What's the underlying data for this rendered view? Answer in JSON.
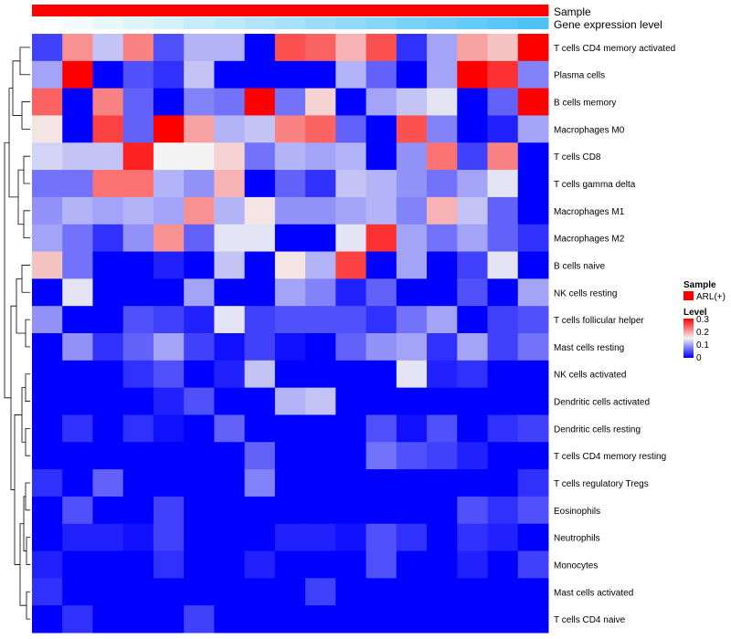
{
  "chart_data": {
    "type": "heatmap",
    "title": "",
    "annotation_rows": [
      {
        "name": "Sample",
        "color_start": "#ff0000",
        "color_end": "#ff0000"
      },
      {
        "name": "Gene expression level",
        "color_start": "#ffffff",
        "color_end": "#4fc3f7"
      }
    ],
    "rows": [
      "T cells CD4 memory activated",
      "Plasma cells",
      "B cells memory",
      "Macrophages M0",
      "T cells CD8",
      "T cells gamma delta",
      "Macrophages M1",
      "Macrophages M2",
      "B cells naive",
      "NK cells resting",
      "T cells follicular helper",
      "Mast cells resting",
      "NK cells activated",
      "Dendritic cells activated",
      "Dendritic cells resting",
      "T cells CD4 memory resting",
      "T cells regulatory  Tregs",
      "Eosinophils",
      "Neutrophils",
      "Monocytes",
      "Mast cells activated",
      "T cells CD4 naive"
    ],
    "n_columns": 17,
    "values": [
      [
        0.04,
        0.21,
        0.12,
        0.22,
        0.05,
        0.11,
        0.11,
        0.0,
        0.25,
        0.24,
        0.19,
        0.25,
        0.03,
        0.1,
        0.2,
        0.18,
        0.3
      ],
      [
        0.1,
        0.3,
        0.0,
        0.05,
        0.03,
        0.12,
        0.0,
        0.0,
        0.0,
        0.0,
        0.11,
        0.06,
        0.0,
        0.1,
        0.3,
        0.27,
        0.08
      ],
      [
        0.24,
        0.0,
        0.22,
        0.06,
        0.0,
        0.08,
        0.07,
        0.3,
        0.07,
        0.17,
        0.0,
        0.1,
        0.12,
        0.14,
        0.0,
        0.06,
        0.3
      ],
      [
        0.16,
        0.0,
        0.26,
        0.06,
        0.3,
        0.2,
        0.11,
        0.12,
        0.22,
        0.24,
        0.06,
        0.0,
        0.25,
        0.08,
        0.0,
        0.02,
        0.1
      ],
      [
        0.13,
        0.12,
        0.12,
        0.28,
        0.15,
        0.15,
        0.17,
        0.07,
        0.11,
        0.1,
        0.11,
        0.0,
        0.09,
        0.23,
        0.04,
        0.22,
        0.0
      ],
      [
        0.07,
        0.07,
        0.23,
        0.23,
        0.11,
        0.09,
        0.19,
        0.0,
        0.06,
        0.03,
        0.12,
        0.11,
        0.09,
        0.07,
        0.1,
        0.14,
        0.0
      ],
      [
        0.09,
        0.11,
        0.1,
        0.11,
        0.1,
        0.21,
        0.11,
        0.16,
        0.09,
        0.09,
        0.1,
        0.11,
        0.08,
        0.19,
        0.12,
        0.06,
        0.0
      ],
      [
        0.1,
        0.07,
        0.03,
        0.09,
        0.21,
        0.06,
        0.14,
        0.14,
        0.0,
        0.0,
        0.14,
        0.27,
        0.1,
        0.07,
        0.1,
        0.06,
        0.03
      ],
      [
        0.18,
        0.07,
        0.0,
        0.0,
        0.02,
        0.0,
        0.12,
        0.0,
        0.16,
        0.11,
        0.26,
        0.0,
        0.1,
        0.0,
        0.04,
        0.14,
        0.0
      ],
      [
        0.0,
        0.14,
        0.0,
        0.0,
        0.0,
        0.1,
        0.0,
        0.0,
        0.1,
        0.08,
        0.02,
        0.06,
        0.0,
        0.0,
        0.05,
        0.0,
        0.1
      ],
      [
        0.09,
        0.0,
        0.0,
        0.05,
        0.04,
        0.02,
        0.14,
        0.04,
        0.05,
        0.05,
        0.05,
        0.03,
        0.07,
        0.1,
        0.0,
        0.04,
        0.05
      ],
      [
        0.0,
        0.09,
        0.03,
        0.06,
        0.1,
        0.04,
        0.01,
        0.04,
        0.01,
        0.0,
        0.06,
        0.09,
        0.1,
        0.03,
        0.1,
        0.04,
        0.07
      ],
      [
        0.0,
        0.0,
        0.0,
        0.03,
        0.05,
        0.0,
        0.02,
        0.12,
        0.0,
        0.0,
        0.0,
        0.0,
        0.14,
        0.02,
        0.03,
        0.0,
        0.0
      ],
      [
        0.0,
        0.0,
        0.0,
        0.0,
        0.02,
        0.05,
        0.0,
        0.0,
        0.11,
        0.12,
        0.0,
        0.0,
        0.0,
        0.0,
        0.0,
        0.0,
        0.0
      ],
      [
        0.0,
        0.03,
        0.0,
        0.03,
        0.01,
        0.0,
        0.06,
        0.0,
        0.0,
        0.0,
        0.0,
        0.05,
        0.01,
        0.05,
        0.0,
        0.03,
        0.04
      ],
      [
        0.0,
        0.0,
        0.0,
        0.0,
        0.0,
        0.0,
        0.0,
        0.06,
        0.0,
        0.0,
        0.0,
        0.07,
        0.05,
        0.04,
        0.02,
        0.0,
        0.0
      ],
      [
        0.03,
        0.0,
        0.06,
        0.0,
        0.0,
        0.0,
        0.0,
        0.08,
        0.0,
        0.0,
        0.0,
        0.0,
        0.0,
        0.0,
        0.0,
        0.0,
        0.03
      ],
      [
        0.0,
        0.05,
        0.0,
        0.0,
        0.04,
        0.0,
        0.0,
        0.0,
        0.0,
        0.0,
        0.0,
        0.0,
        0.0,
        0.0,
        0.05,
        0.03,
        0.05
      ],
      [
        0.0,
        0.02,
        0.02,
        0.01,
        0.04,
        0.0,
        0.0,
        0.0,
        0.02,
        0.02,
        0.01,
        0.05,
        0.03,
        0.0,
        0.03,
        0.02,
        0.0
      ],
      [
        0.02,
        0.0,
        0.0,
        0.0,
        0.03,
        0.0,
        0.0,
        0.02,
        0.0,
        0.0,
        0.0,
        0.05,
        0.0,
        0.0,
        0.02,
        0.0,
        0.04
      ],
      [
        0.03,
        0.0,
        0.0,
        0.0,
        0.0,
        0.0,
        0.0,
        0.0,
        0.0,
        0.04,
        0.0,
        0.0,
        0.0,
        0.0,
        0.0,
        0.0,
        0.0
      ],
      [
        0.0,
        0.03,
        0.0,
        0.0,
        0.0,
        0.04,
        0.0,
        0.0,
        0.0,
        0.0,
        0.0,
        0.0,
        0.0,
        0.0,
        0.0,
        0.0,
        0.0
      ]
    ],
    "color_scale": {
      "min": 0.0,
      "mid": 0.15,
      "max": 0.3,
      "low_color": "#0000ff",
      "mid_color": "#f4f4f4",
      "high_color": "#ff0000"
    },
    "legend": {
      "sample": {
        "title": "Sample",
        "entries": [
          {
            "label": "ARL(+)",
            "color": "#ff0000"
          }
        ]
      },
      "level": {
        "title": "Level",
        "ticks": [
          "0.3",
          "0.2",
          "0.1",
          "0"
        ]
      }
    },
    "dendrogram": "rows, left side"
  }
}
